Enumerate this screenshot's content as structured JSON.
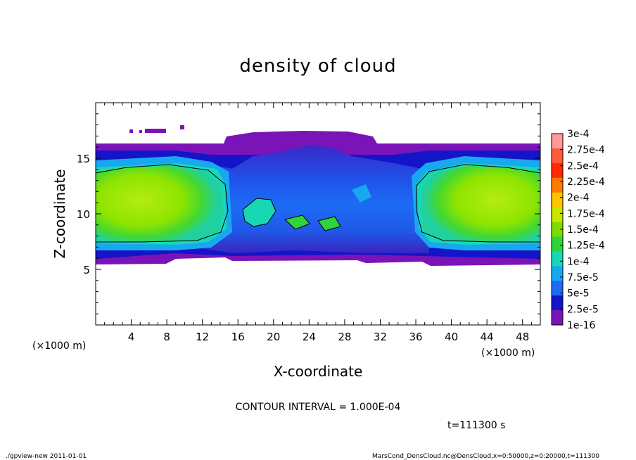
{
  "chart_data": {
    "type": "heatmap",
    "title": "density of cloud",
    "xlabel": "X-coordinate",
    "ylabel": "Z-coordinate",
    "x_unit_left": "(×1000 m)",
    "x_unit_right": "(×1000 m)",
    "xlim": [
      0,
      50
    ],
    "ylim": [
      0,
      20
    ],
    "x_ticks": [
      "4",
      "8",
      "12",
      "16",
      "20",
      "24",
      "28",
      "32",
      "36",
      "40",
      "44",
      "48"
    ],
    "y_ticks": [
      "5",
      "10",
      "15"
    ],
    "colorbar": {
      "labels": [
        "3e-4",
        "2.75e-4",
        "2.5e-4",
        "2.25e-4",
        "2e-4",
        "1.75e-4",
        "1.5e-4",
        "1.25e-4",
        "1e-4",
        "7.5e-5",
        "5e-5",
        "2.5e-5",
        "1e-16"
      ],
      "colors": [
        "#ff9a9a",
        "#ff5a3c",
        "#ff2a00",
        "#ff7a00",
        "#ffc400",
        "#c8e600",
        "#7cdc00",
        "#2fd43a",
        "#18d8b4",
        "#18a8f0",
        "#1c6cf4",
        "#1414c8",
        "#7a14b8"
      ]
    },
    "contour_interval_text": "CONTOUR INTERVAL = 1.000E-04",
    "time_text": "t=111300 s",
    "field_summary": {
      "cloud_layer_z_range": [
        5.6,
        16.2
      ],
      "left_core": {
        "x_range": [
          0,
          15
        ],
        "z_center": 10.8,
        "peak_value": "1.5e-4"
      },
      "right_core": {
        "x_range": [
          36,
          50
        ],
        "z_center": 10.8,
        "peak_value": "1.5e-4"
      },
      "central_region": {
        "x_range": [
          15,
          36
        ],
        "typical_value": "5e-5"
      },
      "top_cap": {
        "x_range": [
          15,
          36
        ],
        "z_top": 17.5,
        "value": "1e-16"
      }
    }
  },
  "footer": {
    "left": "./gpview-new   2011-01-01",
    "right": "MarsCond_DensCloud.nc@DensCloud,x=0:50000,z=0:20000,t=111300"
  },
  "colors": {
    "purple": "#7a14b8",
    "navy": "#1414c8",
    "blue": "#1c6cf4",
    "sky": "#18a8f0",
    "cyan": "#18d8b4",
    "green": "#2fd43a",
    "lime": "#8ee400"
  }
}
